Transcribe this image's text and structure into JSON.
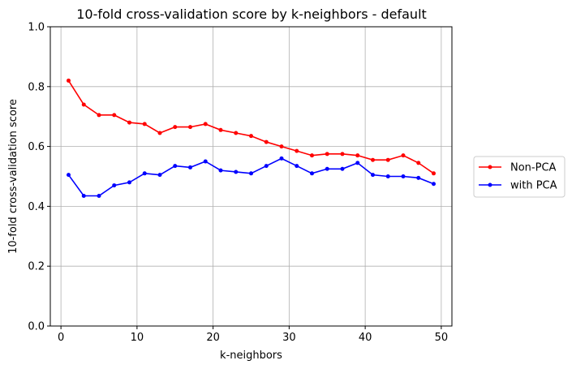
{
  "chart_data": {
    "type": "line",
    "title": "10-fold cross-validation score by k-neighbors - default",
    "xlabel": "k-neighbors",
    "ylabel": "10-fold cross-validation score",
    "xlim": [
      -1.4,
      51.4
    ],
    "ylim": [
      0.0,
      1.0
    ],
    "xticks": [
      0,
      10,
      20,
      30,
      40,
      50
    ],
    "yticks": [
      0.0,
      0.2,
      0.4,
      0.6,
      0.8,
      1.0
    ],
    "grid": true,
    "legend_position": "right-center",
    "x": [
      1,
      3,
      5,
      7,
      9,
      11,
      13,
      15,
      17,
      19,
      21,
      23,
      25,
      27,
      29,
      31,
      33,
      35,
      37,
      39,
      41,
      43,
      45,
      47,
      49
    ],
    "series": [
      {
        "name": "Non-PCA",
        "color": "#ff0000",
        "values": [
          0.82,
          0.74,
          0.705,
          0.705,
          0.68,
          0.675,
          0.645,
          0.665,
          0.665,
          0.675,
          0.655,
          0.645,
          0.635,
          0.615,
          0.6,
          0.585,
          0.57,
          0.575,
          0.575,
          0.57,
          0.555,
          0.555,
          0.57,
          0.545,
          0.51
        ]
      },
      {
        "name": "with PCA",
        "color": "#0000ff",
        "values": [
          0.505,
          0.435,
          0.435,
          0.47,
          0.48,
          0.51,
          0.505,
          0.535,
          0.53,
          0.55,
          0.52,
          0.515,
          0.51,
          0.535,
          0.56,
          0.535,
          0.51,
          0.525,
          0.525,
          0.545,
          0.505,
          0.5,
          0.5,
          0.495,
          0.475
        ]
      }
    ]
  }
}
